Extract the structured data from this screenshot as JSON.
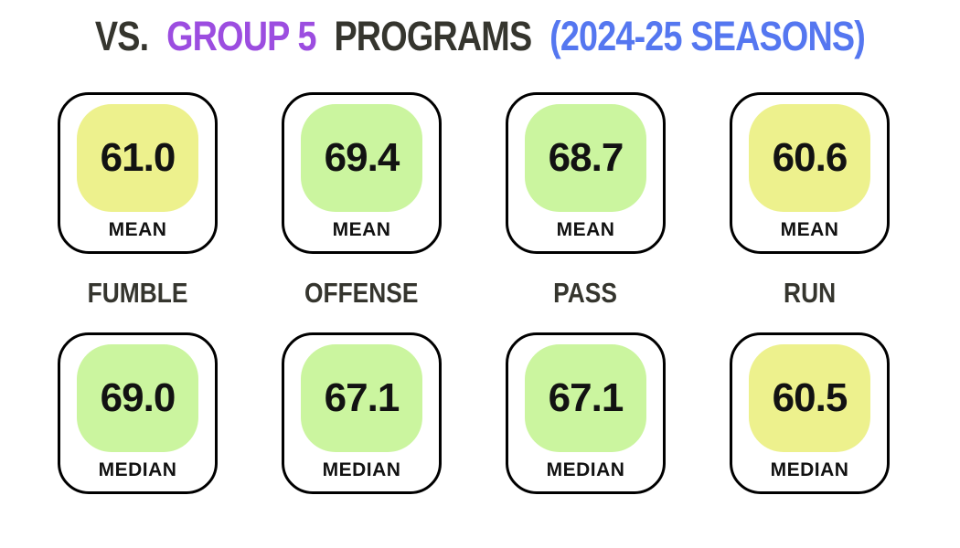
{
  "title": {
    "part1": "VS.",
    "part2": "GROUP 5",
    "part3": "PROGRAMS",
    "part4": "(2024-25 SEASONS)"
  },
  "colors": {
    "dark_text": "#35352E",
    "purple_accent": "#9C4DE0",
    "blue_accent": "#5577F0",
    "value_text": "#121212",
    "card_border": "#000000",
    "background": "#FFFFFF"
  },
  "value_colors": {
    "yellow": "#EDF18D",
    "green": "#CBF59F"
  },
  "card_labels": {
    "mean": "MEAN",
    "median": "MEDIAN"
  },
  "stats": [
    {
      "label": "FUMBLE",
      "mean": "61.0",
      "median": "69.0",
      "mean_color": "yellow",
      "median_color": "green"
    },
    {
      "label": "OFFENSE",
      "mean": "69.4",
      "median": "67.1",
      "mean_color": "green",
      "median_color": "green"
    },
    {
      "label": "PASS",
      "mean": "68.7",
      "median": "67.1",
      "mean_color": "green",
      "median_color": "green"
    },
    {
      "label": "RUN",
      "mean": "60.6",
      "median": "60.5",
      "mean_color": "yellow",
      "median_color": "yellow"
    }
  ],
  "chart_data": {
    "type": "table",
    "title": "VS. GROUP 5 PROGRAMS (2024-25 SEASONS)",
    "categories": [
      "FUMBLE",
      "OFFENSE",
      "PASS",
      "RUN"
    ],
    "series": [
      {
        "name": "MEAN",
        "values": [
          61.0,
          69.4,
          68.7,
          60.6
        ]
      },
      {
        "name": "MEDIAN",
        "values": [
          69.0,
          67.1,
          67.1,
          60.5
        ]
      }
    ],
    "layout": "stat-cards, one column per category; mean card on top row, category label in middle, median card on bottom row; yellow tile = lower value, green tile = higher value"
  }
}
